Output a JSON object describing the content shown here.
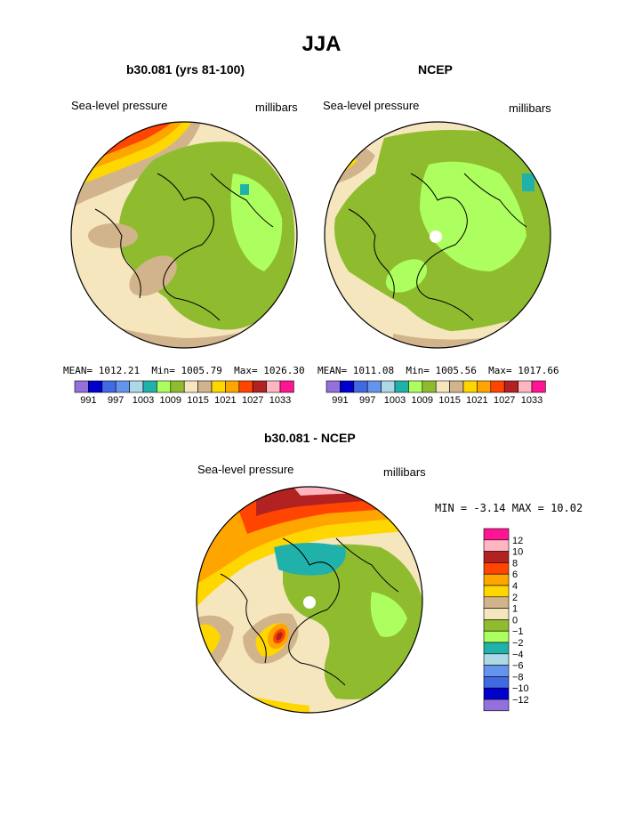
{
  "title": "JJA",
  "colors": {
    "palette": [
      "#9370DB",
      "#0000CD",
      "#4169E1",
      "#6495ED",
      "#ADD8E6",
      "#20B2AA",
      "#ADFF5F",
      "#8FBC2F",
      "#F5E6BE",
      "#D2B48C",
      "#FFD700",
      "#FFA500",
      "#FF4500",
      "#B22222",
      "#FFB6C1",
      "#FF1493"
    ],
    "diff_palette": [
      "#9370DB",
      "#0000CD",
      "#4169E1",
      "#6495ED",
      "#ADD8E6",
      "#20B2AA",
      "#ADFF5F",
      "#8FBC2F",
      "#F5E6BE",
      "#D2B48C",
      "#FFD700",
      "#FFA500",
      "#FF4500",
      "#B22222",
      "#FFB6C1",
      "#FF1493"
    ]
  },
  "panels": [
    {
      "title": "b30.081 (yrs 81-100)",
      "left_label": "Sea-level pressure",
      "right_label": "millibars",
      "mean_label": "MEAN=",
      "mean": "1012.21",
      "min_label": "Min=",
      "min": "1005.79",
      "max_label": "Max=",
      "max": "1026.30"
    },
    {
      "title": "NCEP",
      "left_label": "Sea-level pressure",
      "right_label": "millibars",
      "mean_label": "MEAN=",
      "mean": "1011.08",
      "min_label": "Min=",
      "min": "1005.56",
      "max_label": "Max=",
      "max": "1017.66"
    },
    {
      "title": "b30.081 - NCEP",
      "left_label": "Sea-level pressure",
      "right_label": "millibars",
      "min_label": "MIN =",
      "min": "-3.14",
      "max_label": "MAX =",
      "max": "10.02"
    }
  ],
  "chart_data": [
    {
      "type": "contour-map",
      "projection": "north-polar-stereographic",
      "title": "b30.081 (yrs 81-100)",
      "variable": "Sea-level pressure",
      "units": "millibars",
      "levels": [
        991,
        994,
        997,
        1000,
        1003,
        1006,
        1009,
        1012,
        1015,
        1018,
        1021,
        1024,
        1027,
        1030,
        1033
      ],
      "colorbar_tick_labels": [
        "991",
        "997",
        "1003",
        "1009",
        "1015",
        "1021",
        "1027",
        "1033"
      ],
      "mean": 1012.21,
      "min": 1005.79,
      "max": 1026.3
    },
    {
      "type": "contour-map",
      "projection": "north-polar-stereographic",
      "title": "NCEP",
      "variable": "Sea-level pressure",
      "units": "millibars",
      "levels": [
        991,
        994,
        997,
        1000,
        1003,
        1006,
        1009,
        1012,
        1015,
        1018,
        1021,
        1024,
        1027,
        1030,
        1033
      ],
      "colorbar_tick_labels": [
        "991",
        "997",
        "1003",
        "1009",
        "1015",
        "1021",
        "1027",
        "1033"
      ],
      "mean": 1011.08,
      "min": 1005.56,
      "max": 1017.66
    },
    {
      "type": "contour-map",
      "projection": "north-polar-stereographic",
      "title": "b30.081 - NCEP",
      "variable": "Sea-level pressure",
      "units": "millibars",
      "levels": [
        -12,
        -10,
        -8,
        -6,
        -4,
        -2,
        -1,
        0,
        1,
        2,
        4,
        6,
        8,
        10,
        12
      ],
      "colorbar_tick_labels": [
        "12",
        "10",
        "8",
        "6",
        "4",
        "2",
        "1",
        "0",
        "−1",
        "−2",
        "−4",
        "−6",
        "−8",
        "−10",
        "−12"
      ],
      "min": -3.14,
      "max": 10.02
    }
  ]
}
